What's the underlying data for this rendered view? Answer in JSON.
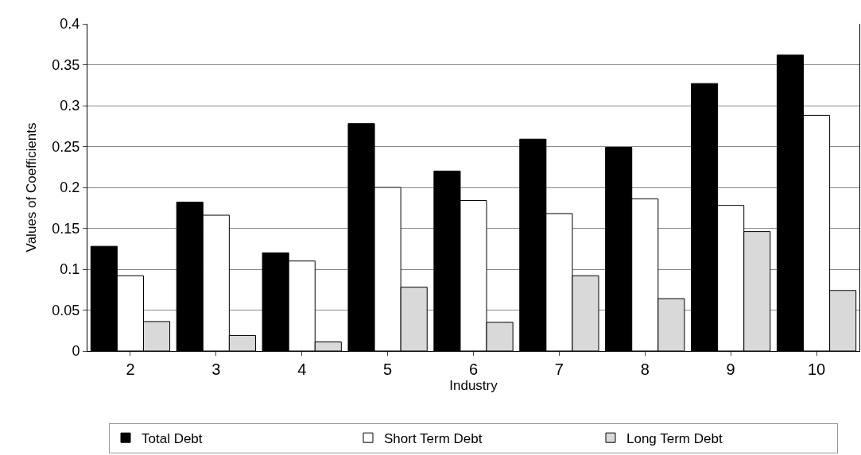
{
  "chart_data": {
    "type": "bar",
    "xlabel": "Industry",
    "ylabel": "Values of Coefficients",
    "categories": [
      "2",
      "3",
      "4",
      "5",
      "6",
      "7",
      "8",
      "9",
      "10"
    ],
    "series": [
      {
        "name": "Total Debt",
        "color": "#000000",
        "values": [
          0.128,
          0.182,
          0.12,
          0.278,
          0.22,
          0.259,
          0.249,
          0.327,
          0.362
        ]
      },
      {
        "name": "Short Term Debt",
        "color": "#ffffff",
        "values": [
          0.092,
          0.166,
          0.11,
          0.2,
          0.184,
          0.168,
          0.186,
          0.178,
          0.288
        ]
      },
      {
        "name": "Long Term Debt",
        "color": "#d9d9d9",
        "values": [
          0.036,
          0.019,
          0.011,
          0.078,
          0.035,
          0.092,
          0.064,
          0.146,
          0.074
        ]
      }
    ],
    "ylim": [
      0,
      0.4
    ],
    "yticks": [
      0,
      0.05,
      0.1,
      0.15,
      0.2,
      0.25,
      0.3,
      0.35,
      0.4
    ],
    "grid": "y",
    "legend": "bottom"
  }
}
